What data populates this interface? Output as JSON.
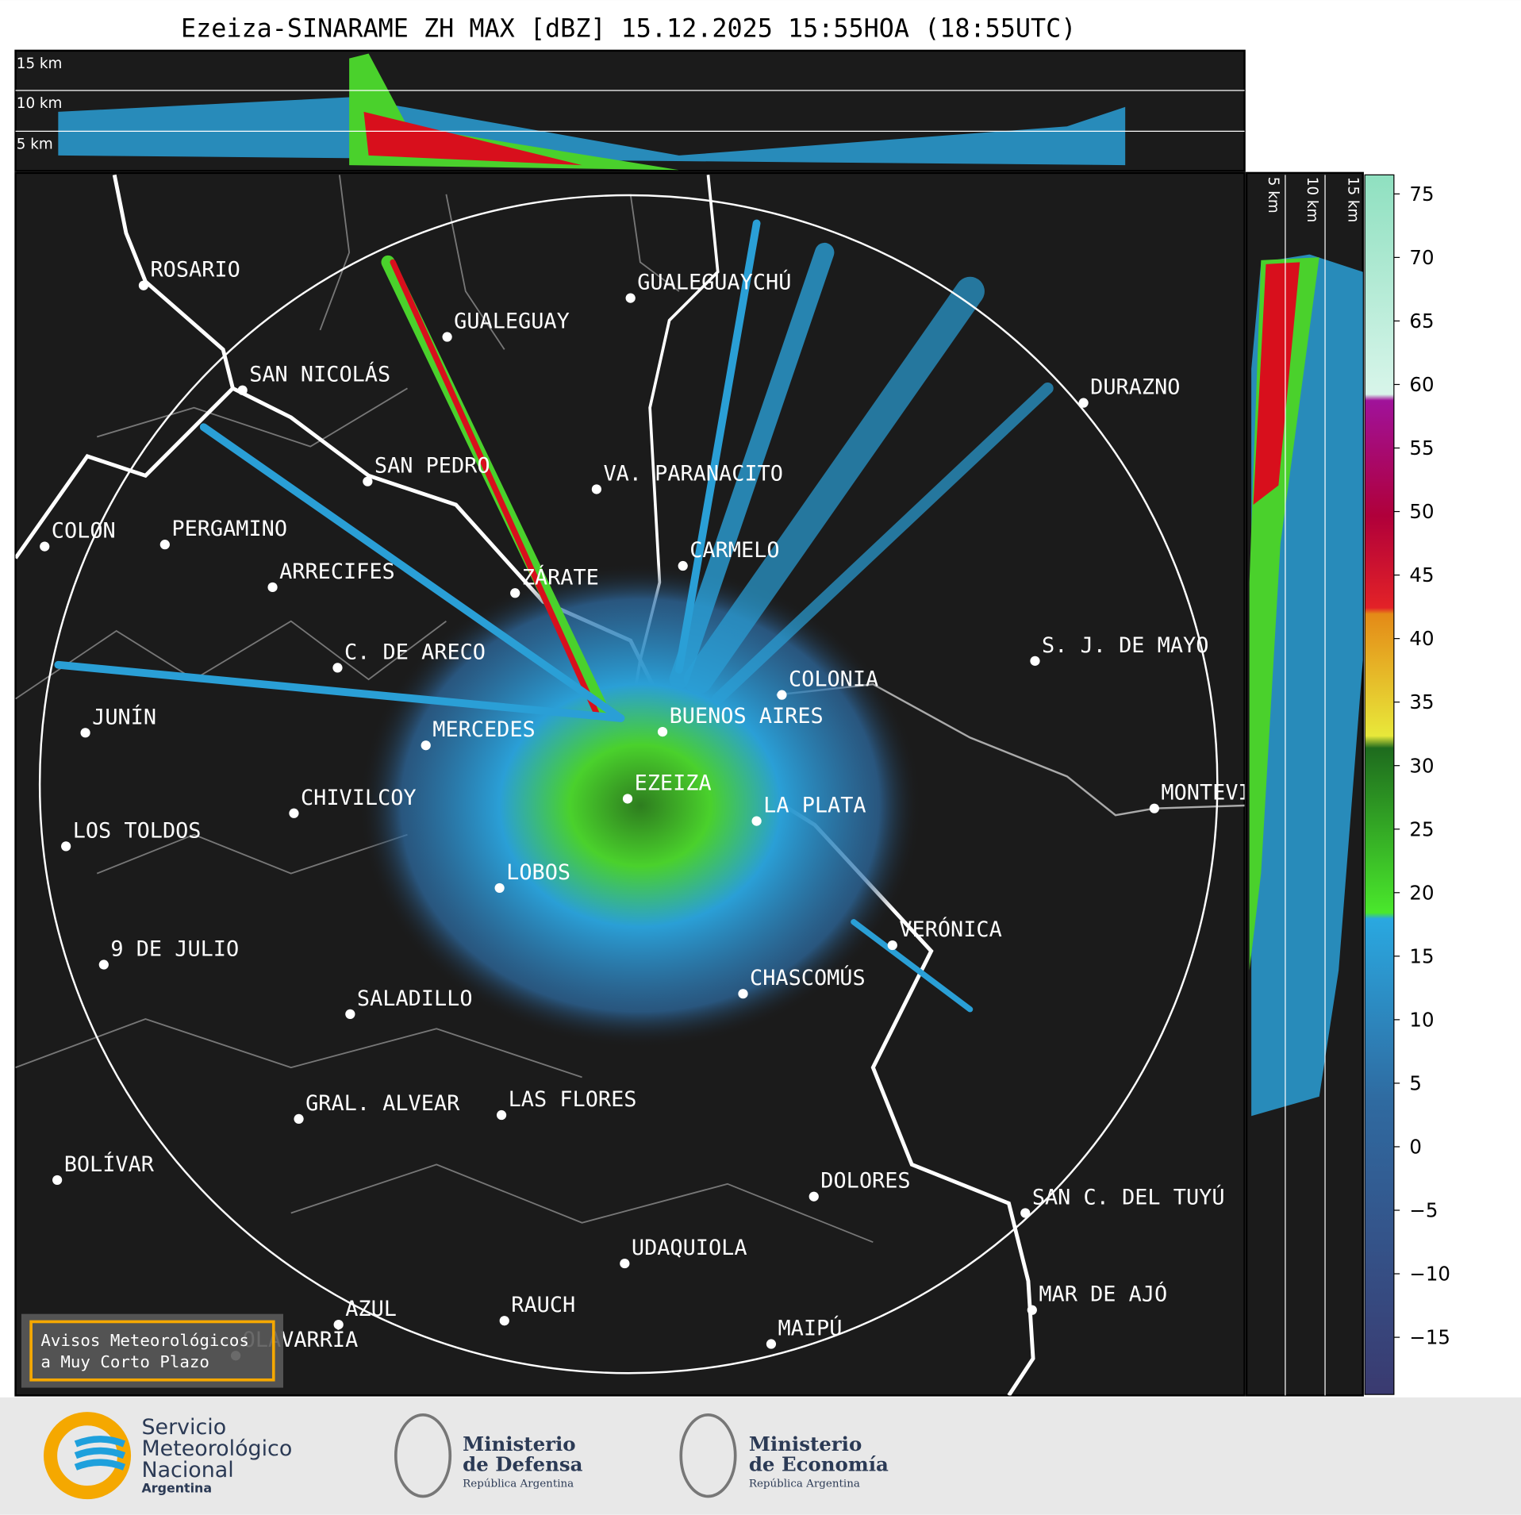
{
  "title": "Ezeiza-SINARAME ZH MAX [dBZ] 15.12.2025 15:55HOA (18:55UTC)",
  "top_panel": {
    "heights": [
      "15 km",
      "10 km",
      "5 km"
    ]
  },
  "side_panel": {
    "heights": [
      "5 km",
      "10 km",
      "15 km"
    ]
  },
  "cities": [
    "ROSARIO",
    "GUALEGUAYCHÚ",
    "GUALEGUAY",
    "SAN NICOLÁS",
    "DURAZNO",
    "SAN PEDRO",
    "VA. PARANACITO",
    "COLON",
    "PERGAMINO",
    "CARMELO",
    "ARRECIFES",
    "ZÁRATE",
    "S. J. DE MAYO",
    "C. DE ARECO",
    "COLONIA",
    "BUENOS AIRES",
    "JUNÍN",
    "MERCEDES",
    "EZEIZA",
    "CHIVILCOY",
    "MONTEVIDEO",
    "LA PLATA",
    "LOS TOLDOS",
    "LOBOS",
    "VERÓNICA",
    "9 DE JULIO",
    "CHASCOMÚS",
    "SALADILLO",
    "GRAL. ALVEAR",
    "LAS FLORES",
    "BOLÍVAR",
    "DOLORES",
    "SAN C. DEL TUYÚ",
    "UDAQUIOLA",
    "MAR DE AJÓ",
    "RAUCH",
    "AZUL",
    "OLAVARRÍA",
    "MAIPÚ"
  ],
  "colorbar": {
    "lim": [
      -19.5,
      76.5
    ],
    "ticks": [
      75,
      70,
      65,
      60,
      55,
      50,
      45,
      40,
      35,
      30,
      25,
      20,
      15,
      10,
      5,
      0,
      {
        "value": -5,
        "label": "−5"
      },
      {
        "value": -10,
        "label": "−10"
      },
      {
        "value": -15,
        "label": "−15"
      }
    ]
  },
  "warning_box": [
    "Avisos Meteorológicos",
    "a Muy Corto Plazo"
  ],
  "footer": {
    "smn": [
      "Servicio",
      "Meteorológico",
      "Nacional",
      "Argentina"
    ],
    "defensa": [
      "Ministerio",
      "de Defensa",
      "República Argentina"
    ],
    "economia": [
      "Ministerio",
      "de Economía",
      "República Argentina"
    ]
  }
}
